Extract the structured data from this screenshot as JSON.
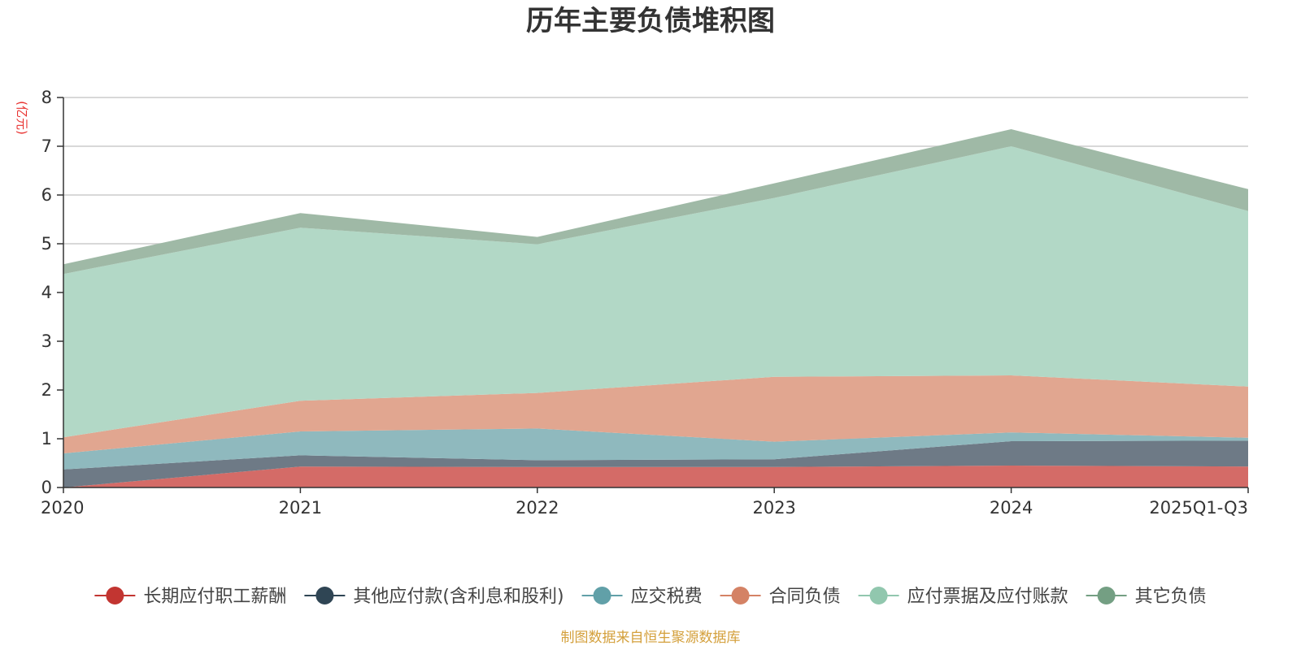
{
  "chart_data": {
    "type": "area",
    "stacked": true,
    "title": "历年主要负债堆积图",
    "ylabel": "(亿元)",
    "xlabel": "",
    "ylim": [
      0,
      8
    ],
    "yticks": [
      "0",
      "1",
      "2",
      "3",
      "4",
      "5",
      "6",
      "7",
      "8"
    ],
    "categories": [
      "2020",
      "2021",
      "2022",
      "2023",
      "2024",
      "2025Q1-Q3"
    ],
    "series": [
      {
        "name": "长期应付职工薪酬",
        "values": [
          0.0,
          0.43,
          0.42,
          0.42,
          0.45,
          0.43
        ],
        "color": "#c23531",
        "fill": "#d46b67"
      },
      {
        "name": "其他应付款(含利息和股利)",
        "values": [
          0.37,
          0.23,
          0.14,
          0.16,
          0.5,
          0.53
        ],
        "color": "#2f4554",
        "fill": "#6e7a86"
      },
      {
        "name": "应交税费",
        "values": [
          0.33,
          0.49,
          0.65,
          0.36,
          0.18,
          0.06
        ],
        "color": "#61a0a8",
        "fill": "#8fb9be"
      },
      {
        "name": "合同负债",
        "values": [
          0.33,
          0.63,
          0.73,
          1.33,
          1.17,
          1.05
        ],
        "color": "#d48265",
        "fill": "#e1a690"
      },
      {
        "name": "应付票据及应付账款",
        "values": [
          3.35,
          3.55,
          3.05,
          3.67,
          4.7,
          3.6
        ],
        "color": "#91c7ae",
        "fill": "#b2d8c6"
      },
      {
        "name": "其它负债",
        "values": [
          0.2,
          0.3,
          0.15,
          0.3,
          0.35,
          0.45
        ],
        "color": "#749f83",
        "fill": "#9fb9a6"
      }
    ],
    "legend_position": "bottom",
    "grid": true
  },
  "source_note": "制图数据来自恒生聚源数据库"
}
